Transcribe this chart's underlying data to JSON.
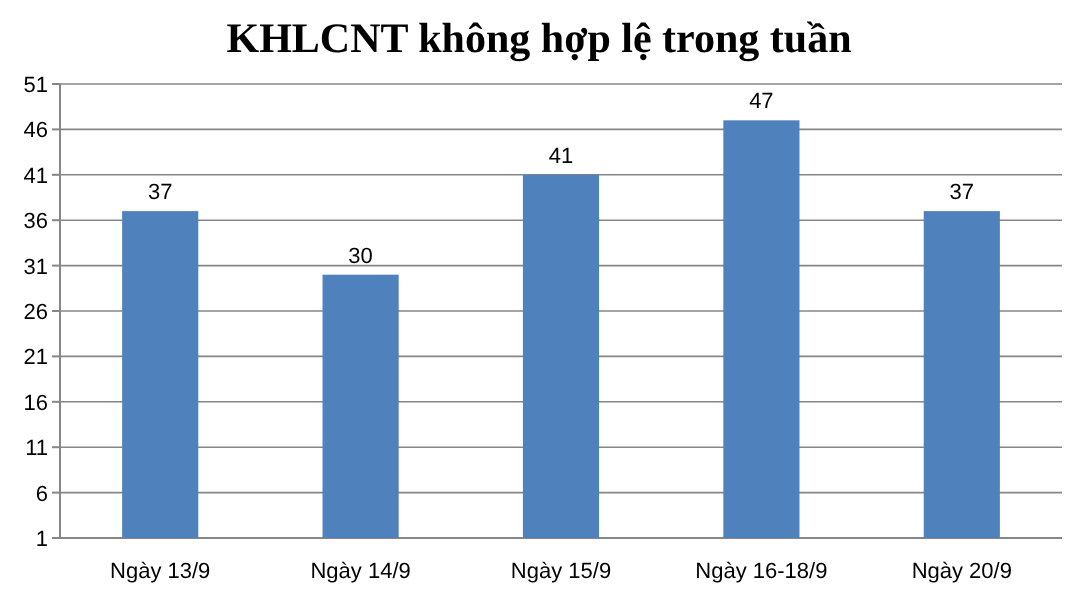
{
  "chart_data": {
    "type": "bar",
    "title": "KHLCNT không hợp lệ trong tuần",
    "categories": [
      "Ngày 13/9",
      "Ngày 14/9",
      "Ngày 15/9",
      "Ngày 16-18/9",
      "Ngày 20/9"
    ],
    "values": [
      37,
      30,
      41,
      47,
      37
    ],
    "color": "#4f81bd",
    "ylim": [
      1,
      51
    ],
    "yticks": [
      1,
      6,
      11,
      16,
      21,
      26,
      31,
      36,
      41,
      46,
      51
    ],
    "grid": "y",
    "data_labels": true
  }
}
